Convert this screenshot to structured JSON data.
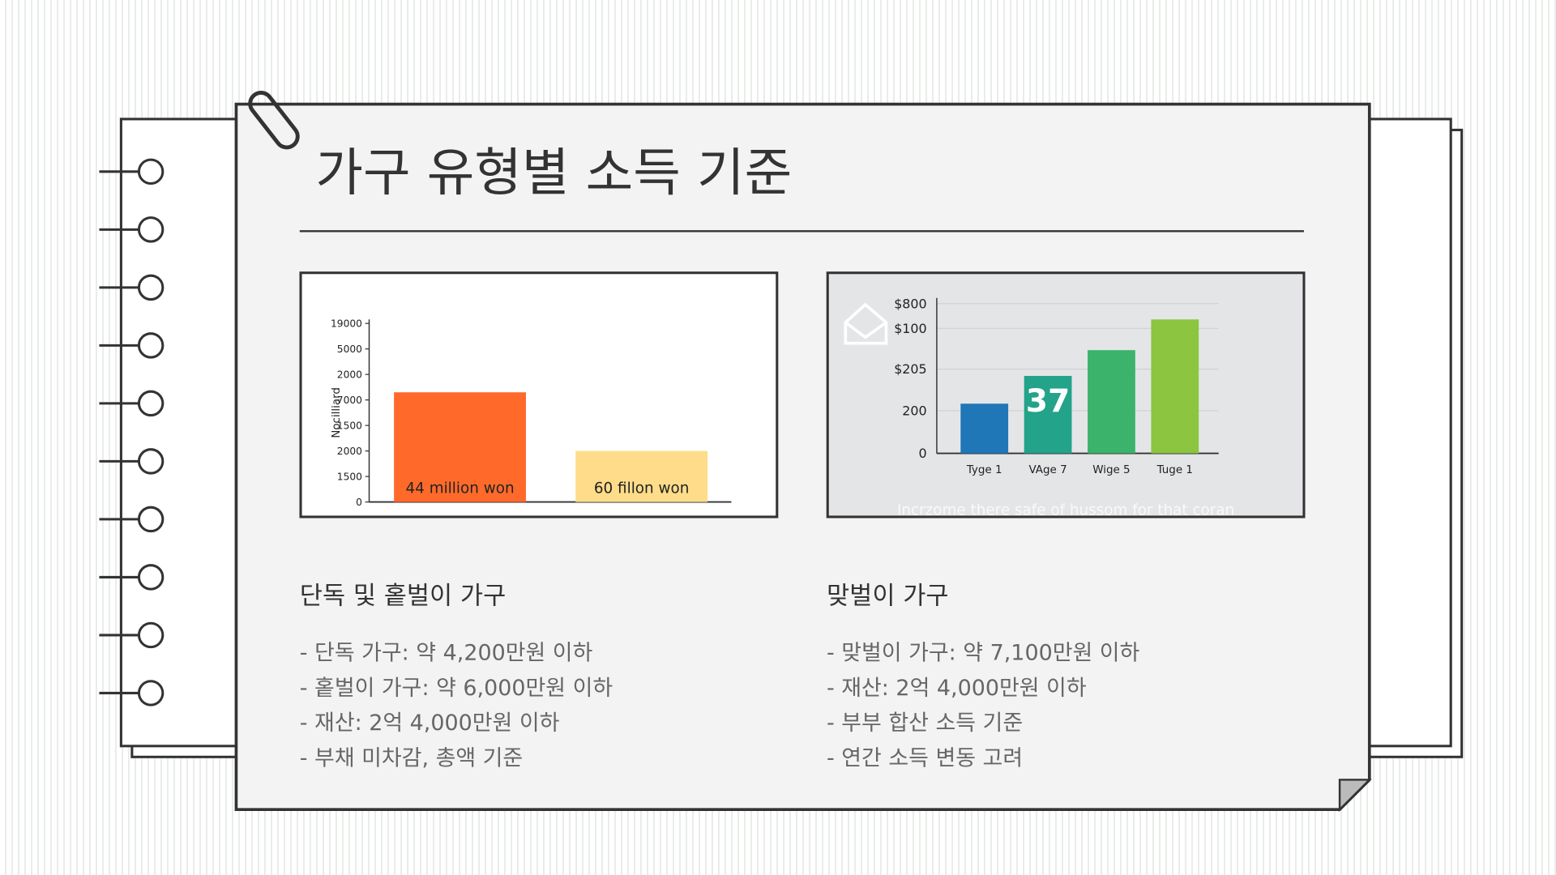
{
  "title": "가구 유형별 소득 기준",
  "chart_data": [
    {
      "type": "bar",
      "y_label": "Nocilliard",
      "categories": [
        "44 million won",
        "60 fillon won"
      ],
      "values": [
        4.3,
        2.0
      ],
      "colors": [
        "#ff6a2b",
        "#ffdc8a"
      ],
      "ylim": [
        0,
        7
      ],
      "yticks": [
        0,
        {
          "value": 1,
          "label": "1500"
        },
        {
          "value": 2,
          "label": "2000"
        },
        {
          "value": 3,
          "label": "1500"
        },
        {
          "value": 4,
          "label": "7000"
        },
        {
          "value": 5,
          "label": "2000"
        },
        {
          "value": 6,
          "label": "5000"
        },
        {
          "value": 7,
          "label": "19000"
        }
      ]
    },
    {
      "type": "bar",
      "categories": [
        "Tyge 1",
        "VAge 7",
        "Wige 5",
        "Tuge 1"
      ],
      "values": [
        233,
        363,
        484,
        628
      ],
      "colors": [
        "#1f77b8",
        "#22a38a",
        "#3bb36b",
        "#8cc540"
      ],
      "annotations": [
        {
          "index": 1,
          "text": "37"
        }
      ],
      "caption": "Incrzome there safe of hussom for that coran",
      "ylim": [
        0,
        710
      ],
      "yticks": [
        0,
        200,
        {
          "value": 395,
          "label": "$205"
        },
        {
          "value": 586,
          "label": "$100"
        },
        {
          "value": 702,
          "label": "$800"
        }
      ],
      "grid": true
    }
  ],
  "sections": [
    {
      "heading": "단독 및 홑벌이 가구",
      "items": [
        "- 단독 가구: 약 4,200만원 이하",
        "- 홑벌이 가구: 약 6,000만원 이하",
        "- 재산: 2억 4,000만원 이하",
        "- 부채 미차감, 총액 기준"
      ]
    },
    {
      "heading": "맞벌이 가구",
      "items": [
        "- 맞벌이 가구: 약 7,100만원 이하",
        "- 재산: 2억 4,000만원 이하",
        "- 부부 합산 소득 기준",
        "- 연간 소득 변동 고려"
      ]
    }
  ]
}
